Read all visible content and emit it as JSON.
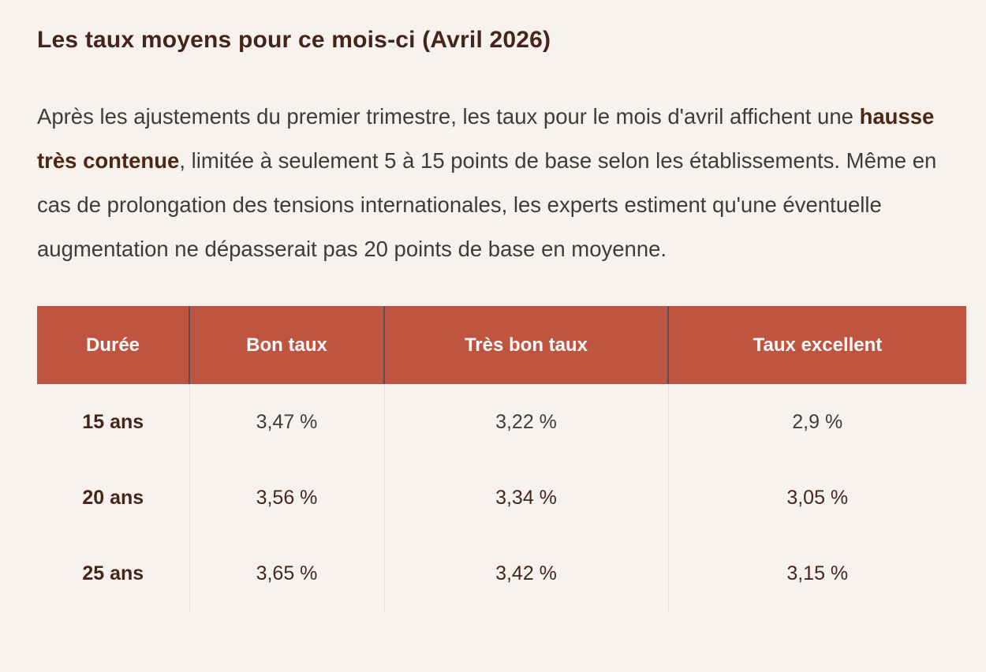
{
  "article": {
    "heading": "Les taux moyens pour ce mois-ci (Avril 2026)",
    "paragraph": {
      "before_bold": "Après les ajustements du premier trimestre, les taux pour le mois d'avril affichent une ",
      "bold": "hausse très contenue",
      "after_bold": ", limitée à seulement 5 à 15 points de base selon les établissements. Même en cas de prolongation des tensions internationales, les experts estiment qu'une éventuelle augmentation ne dépasserait pas 20 points de base en moyenne."
    }
  },
  "rates_table": {
    "headers": [
      "Durée",
      "Bon taux",
      "Très bon taux",
      "Taux excellent"
    ],
    "rows": [
      {
        "duration": "15 ans",
        "values": [
          "3,47 %",
          "3,22 %",
          "2,9 %"
        ]
      },
      {
        "duration": "20 ans",
        "values": [
          "3,56 %",
          "3,34 %",
          "3,05 %"
        ]
      },
      {
        "duration": "25 ans",
        "values": [
          "3,65 %",
          "3,42 %",
          "3,15 %"
        ]
      }
    ]
  },
  "colors": {
    "page_background": "#f7f2ee",
    "heading_brown": "#45241a",
    "body_text": "#3d3c3c",
    "accent_terracotta": "#bf5540",
    "header_text": "#fdfbfa",
    "value_brown": "#44271b",
    "header_divider": "#53525a",
    "body_divider": "#e6e0db"
  }
}
